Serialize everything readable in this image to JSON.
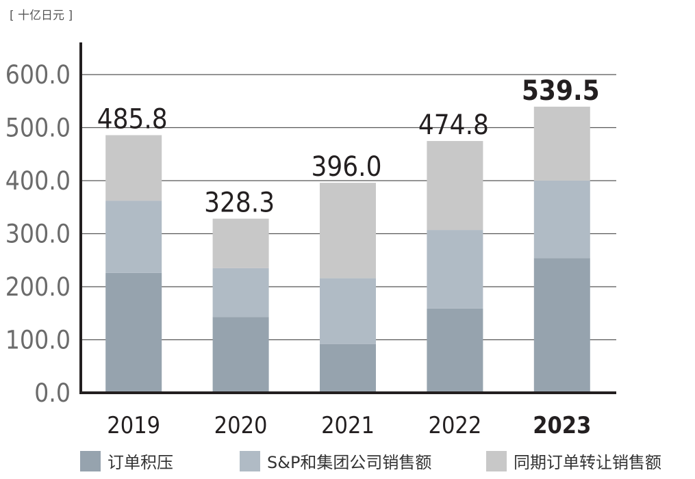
{
  "chart_data": {
    "type": "bar",
    "stacked": true,
    "unit_label": "[ 十亿日元 ]",
    "categories": [
      "2019",
      "2020",
      "2021",
      "2022",
      "2023"
    ],
    "highlight_category": "2023",
    "ylim": [
      0,
      600
    ],
    "yticks": [
      "0.0",
      "100.0",
      "200.0",
      "300.0",
      "400.0",
      "500.0",
      "600.0"
    ],
    "grid": true,
    "legend_position": "bottom",
    "series": [
      {
        "name": "订单积压",
        "color": "#96a3ae",
        "values": [
          226,
          143,
          92,
          159,
          254
        ]
      },
      {
        "name": "S&P和集团公司销售额",
        "color": "#b0bbc5",
        "values": [
          136,
          92,
          124,
          148,
          146
        ]
      },
      {
        "name": "同期订单转让销售额",
        "color": "#c8c8c8",
        "values": [
          123.8,
          93.3,
          180.0,
          167.8,
          139.5
        ]
      }
    ],
    "totals": [
      "485.8",
      "328.3",
      "396.0",
      "474.8",
      "539.5"
    ]
  }
}
